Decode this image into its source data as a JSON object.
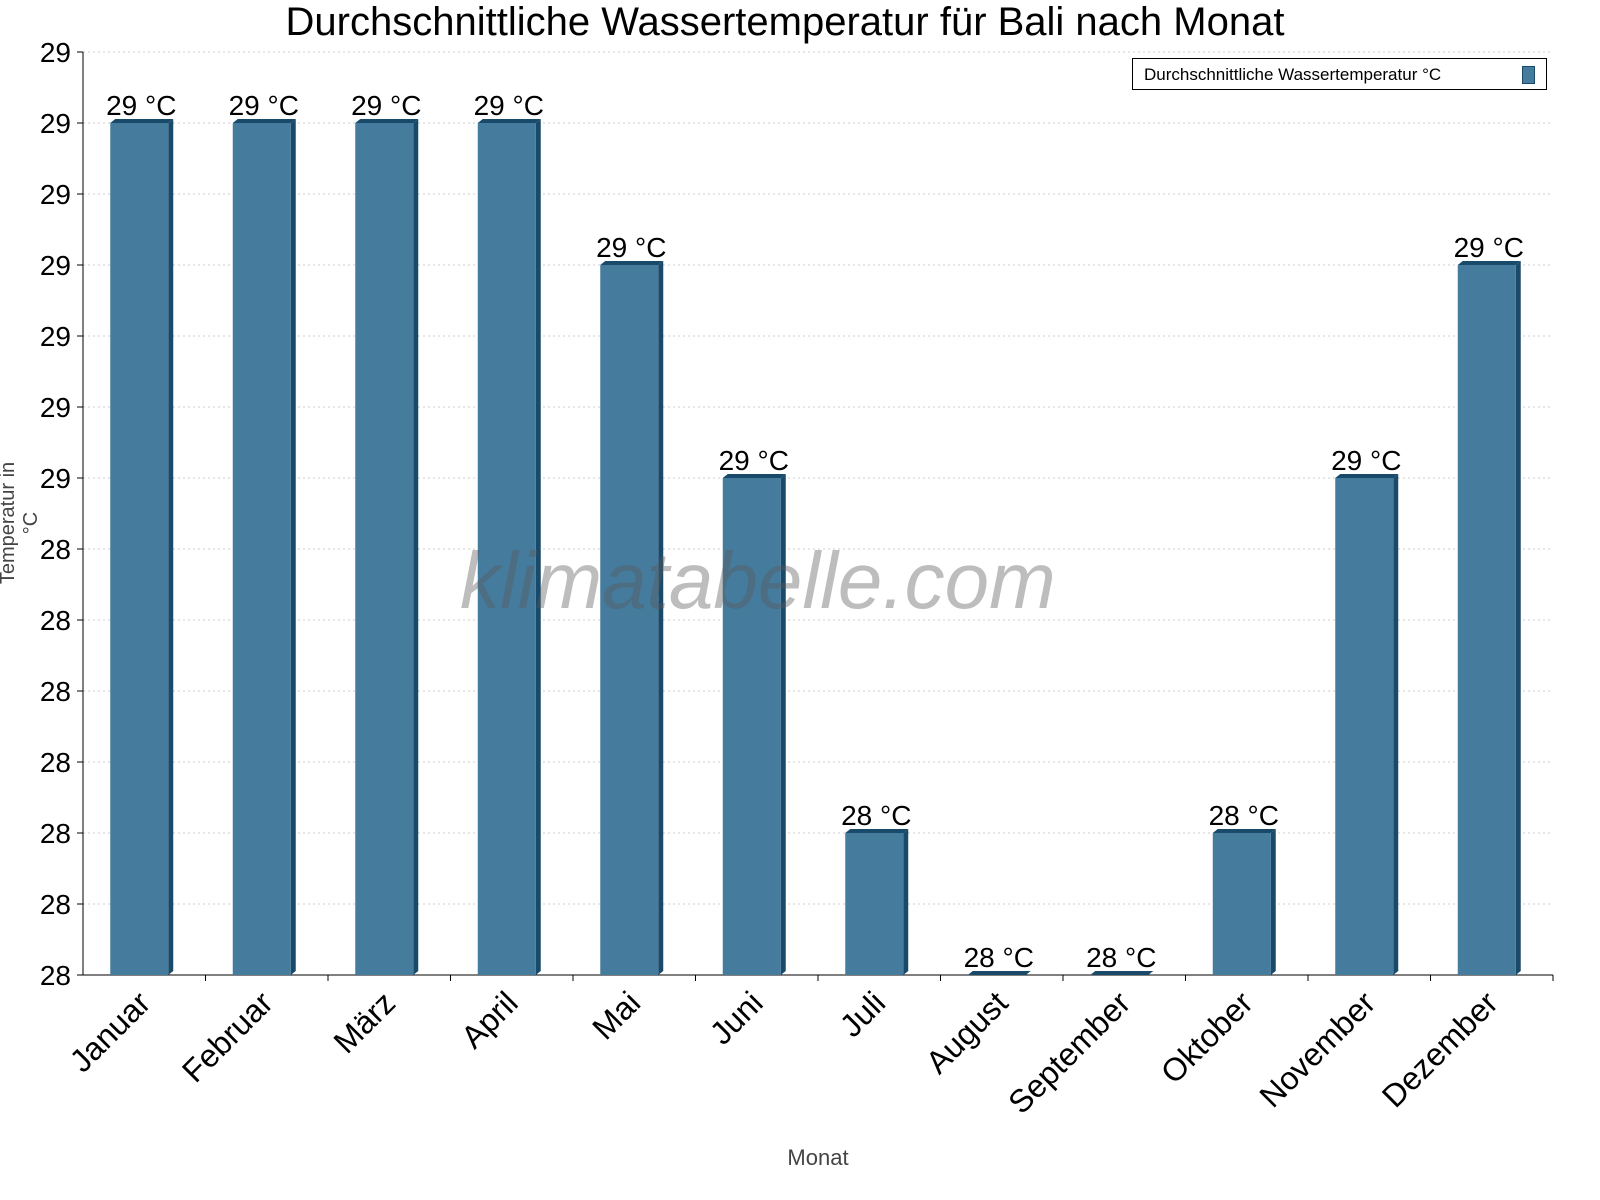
{
  "chart_data": {
    "type": "bar",
    "title": "Durchschnittliche Wassertemperatur für Bali nach Monat",
    "xlabel": "Monat",
    "ylabel": "Temperatur in °C",
    "legend": {
      "entries": [
        "Durchschnittliche Wassertemperatur °C"
      ],
      "position": "top-right"
    },
    "categories": [
      "Januar",
      "Februar",
      "März",
      "April",
      "Mai",
      "Juni",
      "Juli",
      "August",
      "September",
      "Oktober",
      "November",
      "Dezember"
    ],
    "values": [
      29.0,
      29.0,
      29.0,
      29.0,
      28.8,
      28.5,
      28.0,
      27.8,
      27.8,
      28.0,
      28.5,
      28.8
    ],
    "data_labels": [
      "29 °C",
      "29 °C",
      "29 °C",
      "29 °C",
      "29 °C",
      "29 °C",
      "28 °C",
      "28 °C",
      "28 °C",
      "28 °C",
      "29 °C",
      "29 °C"
    ],
    "ylim": [
      27.8,
      29.1
    ],
    "ytick_values": [
      27.8,
      27.9,
      28.0,
      28.1,
      28.2,
      28.3,
      28.4,
      28.5,
      28.6,
      28.7,
      28.8,
      28.9,
      29.0,
      29.1
    ],
    "ytick_labels": [
      "28",
      "28",
      "28",
      "28",
      "28",
      "28",
      "28",
      "29",
      "29",
      "29",
      "29",
      "29",
      "29",
      "29"
    ],
    "grid": true,
    "color": "#457b9d",
    "edge_color": "#1a4a6a"
  },
  "watermark": "klimatabelle.com"
}
